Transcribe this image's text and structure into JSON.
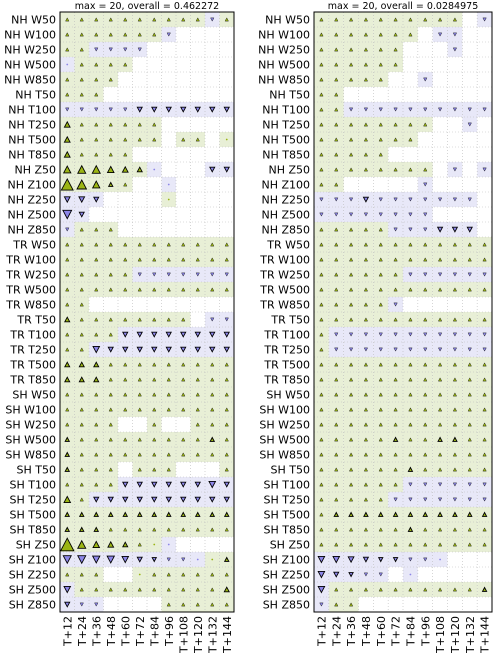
{
  "chart_data": [
    {
      "type": "heatmap",
      "title": "max = 20, overall = 0.462272",
      "rows": [
        "NH W50",
        "NH W100",
        "NH W250",
        "NH W500",
        "NH W850",
        "NH T50",
        "NH T100",
        "NH T250",
        "NH T500",
        "NH T850",
        "NH Z50",
        "NH Z100",
        "NH Z250",
        "NH Z500",
        "NH Z850",
        "TR W50",
        "TR W100",
        "TR W250",
        "TR W500",
        "TR W850",
        "TR T50",
        "TR T100",
        "TR T250",
        "TR T500",
        "TR T850",
        "SH W50",
        "SH W100",
        "SH W250",
        "SH W500",
        "SH W850",
        "SH T50",
        "SH T100",
        "SH T250",
        "SH T500",
        "SH T850",
        "SH Z50",
        "SH Z100",
        "SH Z250",
        "SH Z500",
        "SH Z850"
      ],
      "columns": [
        "T+12",
        "T+24",
        "T+36",
        "T+48",
        "T+60",
        "T+72",
        "T+84",
        "T+96",
        "T+108",
        "T+120",
        "T+132",
        "T+144"
      ],
      "max": 20,
      "overall": 0.462272,
      "values": [
        [
          2,
          2,
          2,
          2,
          2,
          2,
          2,
          2,
          2,
          2,
          -2,
          2
        ],
        [
          2,
          2,
          2,
          2,
          2,
          2,
          2,
          -2,
          0,
          0,
          0,
          0
        ],
        [
          2,
          2,
          -2,
          -2,
          -2,
          -2,
          0,
          0,
          0,
          0,
          0,
          0
        ],
        [
          -1,
          2,
          2,
          2,
          2,
          0,
          0,
          0,
          0,
          0,
          0,
          0
        ],
        [
          2,
          2,
          2,
          2,
          0,
          0,
          0,
          0,
          0,
          0,
          0,
          0
        ],
        [
          2,
          2,
          2,
          0,
          0,
          0,
          0,
          0,
          0,
          0,
          0,
          0
        ],
        [
          -2,
          -2,
          -2,
          -2,
          -2,
          -4,
          -4,
          -4,
          -4,
          -4,
          -4,
          -4
        ],
        [
          5,
          2,
          2,
          2,
          2,
          2,
          2,
          0,
          0,
          0,
          0,
          0
        ],
        [
          5,
          2,
          2,
          2,
          2,
          2,
          2,
          0,
          2,
          2,
          0,
          1
        ],
        [
          5,
          2,
          2,
          2,
          2,
          0,
          0,
          0,
          0,
          0,
          0,
          0
        ],
        [
          7,
          8,
          8,
          6,
          5,
          4,
          -1,
          0,
          0,
          0,
          -4,
          -4
        ],
        [
          13,
          10,
          7,
          3,
          2,
          0,
          0,
          -1,
          0,
          0,
          0,
          0
        ],
        [
          -5,
          -5,
          -4,
          0,
          0,
          0,
          0,
          1,
          0,
          0,
          0,
          0
        ],
        [
          -9,
          -4,
          0,
          0,
          0,
          0,
          0,
          0,
          0,
          0,
          0,
          0
        ],
        [
          -2,
          2,
          2,
          2,
          0,
          0,
          0,
          0,
          0,
          0,
          0,
          0
        ],
        [
          2,
          2,
          2,
          2,
          2,
          2,
          2,
          2,
          2,
          2,
          2,
          2
        ],
        [
          2,
          2,
          2,
          2,
          2,
          2,
          2,
          2,
          2,
          2,
          2,
          2
        ],
        [
          2,
          2,
          2,
          2,
          2,
          -2,
          -2,
          -2,
          -2,
          -2,
          -2,
          -2
        ],
        [
          2,
          2,
          2,
          2,
          2,
          2,
          2,
          2,
          2,
          2,
          2,
          2
        ],
        [
          2,
          2,
          0,
          0,
          0,
          0,
          0,
          0,
          0,
          0,
          0,
          0
        ],
        [
          4,
          2,
          2,
          2,
          2,
          2,
          2,
          2,
          2,
          0,
          -2,
          -2
        ],
        [
          2,
          2,
          2,
          2,
          -4,
          -4,
          -4,
          -4,
          -4,
          -4,
          -4,
          -4
        ],
        [
          2,
          2,
          -6,
          -4,
          -4,
          -4,
          -4,
          -4,
          -4,
          -4,
          -4,
          -4
        ],
        [
          4,
          4,
          4,
          2,
          2,
          2,
          2,
          2,
          2,
          2,
          2,
          2
        ],
        [
          4,
          4,
          4,
          2,
          2,
          2,
          2,
          2,
          2,
          2,
          2,
          2
        ],
        [
          2,
          2,
          2,
          2,
          2,
          2,
          2,
          2,
          2,
          2,
          2,
          2
        ],
        [
          2,
          2,
          2,
          2,
          2,
          2,
          2,
          2,
          2,
          2,
          2,
          2
        ],
        [
          2,
          2,
          2,
          2,
          0,
          0,
          2,
          0,
          0,
          2,
          2,
          2
        ],
        [
          3,
          2,
          2,
          2,
          2,
          2,
          2,
          2,
          2,
          2,
          3,
          2
        ],
        [
          3,
          2,
          2,
          2,
          2,
          2,
          2,
          2,
          2,
          2,
          2,
          2
        ],
        [
          3,
          2,
          2,
          2,
          0,
          2,
          2,
          2,
          0,
          0,
          0,
          2
        ],
        [
          2,
          2,
          2,
          2,
          -4,
          -4,
          -4,
          -4,
          -4,
          -4,
          -6,
          -4
        ],
        [
          6,
          2,
          -4,
          -4,
          -4,
          -4,
          -4,
          -4,
          -4,
          -4,
          -4,
          -4
        ],
        [
          3,
          3,
          3,
          3,
          3,
          3,
          3,
          3,
          3,
          3,
          3,
          3
        ],
        [
          3,
          3,
          3,
          2,
          2,
          2,
          2,
          2,
          2,
          2,
          2,
          2
        ],
        [
          15,
          8,
          6,
          5,
          4,
          2,
          1,
          -1,
          0,
          0,
          0,
          0
        ],
        [
          -8,
          -8,
          -7,
          -7,
          -6,
          -4,
          -3,
          -2,
          -2,
          -1,
          1,
          3
        ],
        [
          2,
          2,
          2,
          0,
          0,
          1,
          2,
          2,
          2,
          2,
          2,
          2
        ],
        [
          -6,
          2,
          2,
          2,
          2,
          2,
          2,
          2,
          2,
          2,
          2,
          4
        ],
        [
          -4,
          -2,
          -2,
          0,
          0,
          0,
          0,
          2,
          2,
          2,
          2,
          2
        ]
      ]
    },
    {
      "type": "heatmap",
      "title": "max = 20, overall = 0.0284975",
      "rows": [
        "NH W50",
        "NH W100",
        "NH W250",
        "NH W500",
        "NH W850",
        "NH T50",
        "NH T100",
        "NH T250",
        "NH T500",
        "NH T850",
        "NH Z50",
        "NH Z100",
        "NH Z250",
        "NH Z500",
        "NH Z850",
        "TR W50",
        "TR W100",
        "TR W250",
        "TR W500",
        "TR W850",
        "TR T50",
        "TR T100",
        "TR T250",
        "TR T500",
        "TR T850",
        "SH W50",
        "SH W100",
        "SH W250",
        "SH W500",
        "SH W850",
        "SH T50",
        "SH T100",
        "SH T250",
        "SH T500",
        "SH T850",
        "SH Z50",
        "SH Z100",
        "SH Z250",
        "SH Z500",
        "SH Z850"
      ],
      "columns": [
        "T+12",
        "T+24",
        "T+36",
        "T+48",
        "T+60",
        "T+72",
        "T+84",
        "T+96",
        "T+108",
        "T+120",
        "T+132",
        "T+144"
      ],
      "max": 20,
      "overall": 0.0284975,
      "values": [
        [
          2,
          2,
          2,
          2,
          2,
          2,
          2,
          2,
          2,
          2,
          0,
          -2
        ],
        [
          2,
          2,
          2,
          2,
          2,
          2,
          2,
          0,
          -2,
          -2,
          0,
          0
        ],
        [
          2,
          2,
          2,
          2,
          2,
          2,
          0,
          0,
          0,
          -2,
          0,
          0
        ],
        [
          2,
          2,
          2,
          2,
          2,
          2,
          0,
          0,
          0,
          0,
          0,
          0
        ],
        [
          2,
          2,
          2,
          2,
          2,
          0,
          0,
          -2,
          0,
          0,
          0,
          0
        ],
        [
          2,
          2,
          0,
          0,
          0,
          0,
          0,
          0,
          0,
          0,
          0,
          0
        ],
        [
          2,
          2,
          -2,
          -2,
          -2,
          -2,
          -2,
          -2,
          -2,
          -2,
          -2,
          -2
        ],
        [
          2,
          2,
          2,
          2,
          2,
          2,
          2,
          2,
          0,
          0,
          -2,
          0
        ],
        [
          2,
          2,
          2,
          2,
          2,
          2,
          2,
          0,
          0,
          0,
          0,
          0
        ],
        [
          2,
          2,
          2,
          2,
          2,
          0,
          0,
          0,
          0,
          0,
          0,
          0
        ],
        [
          2,
          2,
          2,
          2,
          2,
          2,
          2,
          2,
          0,
          -2,
          0,
          -2
        ],
        [
          2,
          2,
          0,
          0,
          0,
          0,
          0,
          -2,
          0,
          0,
          0,
          0
        ],
        [
          -2,
          -2,
          -2,
          -4,
          -2,
          -2,
          -2,
          -2,
          -2,
          -2,
          -2,
          0
        ],
        [
          -2,
          -2,
          -2,
          -2,
          -2,
          -2,
          -2,
          -2,
          0,
          0,
          0,
          0
        ],
        [
          2,
          2,
          2,
          2,
          2,
          -2,
          -2,
          -2,
          -4,
          -4,
          -4,
          0
        ],
        [
          2,
          2,
          2,
          2,
          2,
          2,
          2,
          2,
          2,
          2,
          2,
          2
        ],
        [
          2,
          2,
          2,
          2,
          2,
          2,
          2,
          2,
          2,
          2,
          2,
          2
        ],
        [
          2,
          2,
          2,
          2,
          2,
          2,
          -2,
          -2,
          -2,
          -2,
          -2,
          -2
        ],
        [
          2,
          2,
          2,
          2,
          2,
          2,
          2,
          2,
          2,
          2,
          2,
          2
        ],
        [
          2,
          2,
          2,
          2,
          2,
          -2,
          0,
          0,
          0,
          0,
          0,
          0
        ],
        [
          2,
          2,
          2,
          2,
          2,
          2,
          2,
          2,
          2,
          2,
          2,
          2
        ],
        [
          2,
          -2,
          -2,
          -2,
          -2,
          -2,
          -2,
          -2,
          -2,
          -2,
          -2,
          -2
        ],
        [
          2,
          -2,
          -2,
          -2,
          -2,
          -2,
          -2,
          -2,
          -2,
          -2,
          -2,
          -2
        ],
        [
          2,
          2,
          2,
          2,
          2,
          2,
          2,
          2,
          2,
          2,
          2,
          2
        ],
        [
          2,
          2,
          2,
          2,
          2,
          2,
          2,
          2,
          2,
          2,
          2,
          2
        ],
        [
          2,
          2,
          2,
          2,
          2,
          2,
          2,
          2,
          2,
          2,
          2,
          2
        ],
        [
          2,
          2,
          2,
          2,
          2,
          2,
          2,
          2,
          2,
          2,
          2,
          2
        ],
        [
          2,
          2,
          2,
          2,
          2,
          2,
          2,
          2,
          2,
          2,
          2,
          2
        ],
        [
          2,
          2,
          2,
          2,
          2,
          3,
          2,
          2,
          3,
          3,
          2,
          2
        ],
        [
          2,
          2,
          2,
          2,
          2,
          2,
          2,
          2,
          2,
          2,
          2,
          2
        ],
        [
          2,
          2,
          2,
          2,
          2,
          2,
          3,
          2,
          2,
          2,
          2,
          2
        ],
        [
          2,
          2,
          2,
          2,
          2,
          2,
          -2,
          -2,
          -2,
          -2,
          -2,
          -2
        ],
        [
          2,
          2,
          2,
          2,
          2,
          -2,
          -2,
          -2,
          -2,
          -2,
          -2,
          -2
        ],
        [
          2,
          3,
          3,
          3,
          3,
          3,
          3,
          3,
          3,
          3,
          3,
          3
        ],
        [
          2,
          2,
          2,
          2,
          2,
          2,
          3,
          2,
          2,
          2,
          2,
          2
        ],
        [
          2,
          2,
          2,
          2,
          2,
          2,
          2,
          2,
          2,
          2,
          2,
          2
        ],
        [
          -6,
          -6,
          -5,
          -4,
          -3,
          -3,
          -2,
          -2,
          -1,
          0,
          0,
          0
        ],
        [
          -6,
          -4,
          -3,
          -2,
          -2,
          0,
          -1,
          0,
          0,
          0,
          0,
          0
        ],
        [
          -6,
          2,
          2,
          2,
          2,
          2,
          2,
          2,
          2,
          2,
          2,
          3
        ],
        [
          -2,
          2,
          2,
          0,
          0,
          0,
          0,
          0,
          0,
          0,
          0,
          0
        ]
      ]
    }
  ]
}
